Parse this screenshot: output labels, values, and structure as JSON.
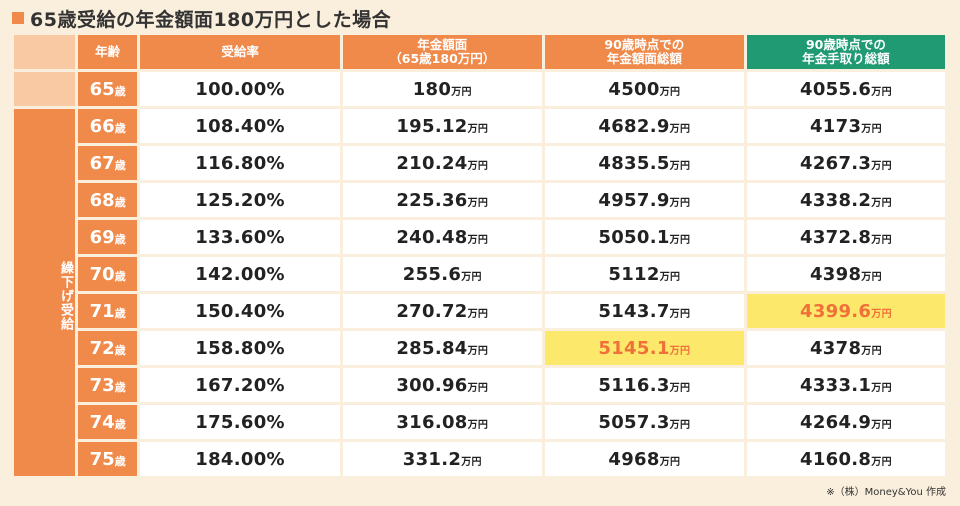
{
  "title": "65歳受給の年金額面180万円とした場合",
  "headers": {
    "age": "年齢",
    "rate": "受給率",
    "amount_line1": "年金額面",
    "amount_line2": "（65歳180万円）",
    "total_face_line1": "90歳時点での",
    "total_face_line2": "年金額面総額",
    "total_net_line1": "90歳時点での",
    "total_net_line2": "年金手取り総額"
  },
  "group_label": "繰下げ受給",
  "age_unit": "歳",
  "money_unit": "万円",
  "rows": [
    {
      "age": "65",
      "rate": "100.00%",
      "amount": "180",
      "total_face": "4500",
      "total_net": "4055.6"
    },
    {
      "age": "66",
      "rate": "108.40%",
      "amount": "195.12",
      "total_face": "4682.9",
      "total_net": "4173"
    },
    {
      "age": "67",
      "rate": "116.80%",
      "amount": "210.24",
      "total_face": "4835.5",
      "total_net": "4267.3"
    },
    {
      "age": "68",
      "rate": "125.20%",
      "amount": "225.36",
      "total_face": "4957.9",
      "total_net": "4338.2"
    },
    {
      "age": "69",
      "rate": "133.60%",
      "amount": "240.48",
      "total_face": "5050.1",
      "total_net": "4372.8"
    },
    {
      "age": "70",
      "rate": "142.00%",
      "amount": "255.6",
      "total_face": "5112",
      "total_net": "4398"
    },
    {
      "age": "71",
      "rate": "150.40%",
      "amount": "270.72",
      "total_face": "5143.7",
      "total_net": "4399.6"
    },
    {
      "age": "72",
      "rate": "158.80%",
      "amount": "285.84",
      "total_face": "5145.1",
      "total_net": "4378"
    },
    {
      "age": "73",
      "rate": "167.20%",
      "amount": "300.96",
      "total_face": "5116.3",
      "total_net": "4333.1"
    },
    {
      "age": "74",
      "rate": "175.60%",
      "amount": "316.08",
      "total_face": "5057.3",
      "total_net": "4264.9"
    },
    {
      "age": "75",
      "rate": "184.00%",
      "amount": "331.2",
      "total_face": "4968",
      "total_net": "4160.8"
    }
  ],
  "highlight": {
    "total_face_age": "72",
    "total_net_age": "71"
  },
  "note": "※（株）Money&You 作成",
  "colors": {
    "orange": "#f08a4b",
    "green": "#1f9a73",
    "highlight": "#fce86a",
    "highlight_text": "#f0703a"
  }
}
